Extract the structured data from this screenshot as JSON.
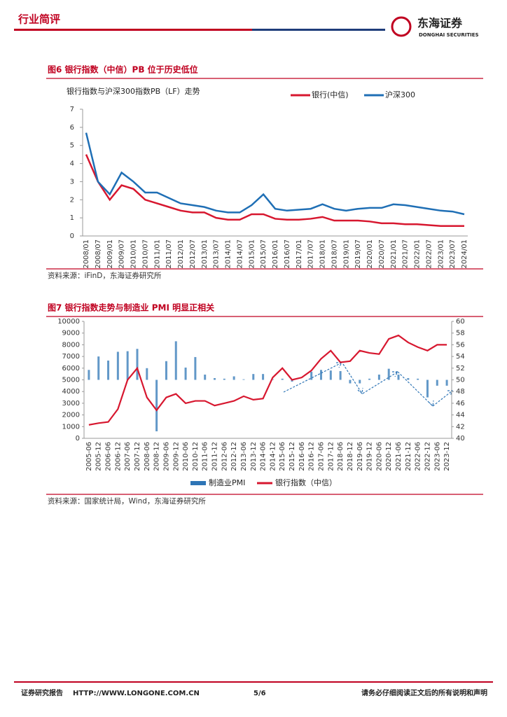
{
  "header": {
    "section": "行业简评",
    "logo": "东海证券",
    "logo_en": "DONGHAI SECURITIES"
  },
  "chart_data": [
    {
      "type": "line",
      "caption": "图6 银行指数（中信）PB 位于历史低位",
      "title": "银行指数与沪深300指数PB（LF）走势",
      "source": "资料来源：iFinD，东海证券研究所",
      "categories": [
        "2008/01",
        "2008/07",
        "2009/01",
        "2009/07",
        "2010/01",
        "2010/07",
        "2011/01",
        "2011/07",
        "2012/01",
        "2012/07",
        "2013/01",
        "2013/07",
        "2014/01",
        "2014/07",
        "2015/01",
        "2015/07",
        "2016/01",
        "2016/07",
        "2017/01",
        "2017/07",
        "2018/01",
        "2018/07",
        "2019/01",
        "2019/07",
        "2020/01",
        "2020/07",
        "2021/01",
        "2021/07",
        "2022/01",
        "2022/07",
        "2023/01",
        "2023/07",
        "2024/01"
      ],
      "series": [
        {
          "name": "银行(中信)",
          "color": "#d7172f",
          "values": [
            4.5,
            3.0,
            2.0,
            2.8,
            2.6,
            2.0,
            1.8,
            1.6,
            1.4,
            1.3,
            1.3,
            1.0,
            0.9,
            0.9,
            1.2,
            1.2,
            0.95,
            0.9,
            0.9,
            0.95,
            1.05,
            0.85,
            0.85,
            0.85,
            0.8,
            0.7,
            0.7,
            0.65,
            0.65,
            0.6,
            0.55,
            0.55,
            0.55
          ]
        },
        {
          "name": "沪深300",
          "color": "#1f6fb5",
          "values": [
            5.7,
            3.0,
            2.3,
            3.5,
            3.0,
            2.4,
            2.4,
            2.1,
            1.8,
            1.7,
            1.6,
            1.4,
            1.3,
            1.3,
            1.7,
            2.3,
            1.5,
            1.4,
            1.45,
            1.5,
            1.75,
            1.5,
            1.4,
            1.5,
            1.55,
            1.55,
            1.75,
            1.7,
            1.6,
            1.5,
            1.4,
            1.35,
            1.2
          ]
        }
      ],
      "ylim": [
        0,
        7
      ],
      "yticks": [
        0,
        1,
        2,
        3,
        4,
        5,
        6,
        7
      ]
    },
    {
      "type": "combo",
      "caption": "图7 银行指数走势与制造业 PMI 明显正相关",
      "source": "资料来源：国家统计局，Wind，东海证券研究所",
      "categories": [
        "2005-06",
        "2005-12",
        "2006-06",
        "2006-12",
        "2007-06",
        "2007-12",
        "2008-06",
        "2008-12",
        "2009-06",
        "2009-12",
        "2010-06",
        "2010-12",
        "2011-06",
        "2011-12",
        "2012-06",
        "2012-12",
        "2013-06",
        "2013-12",
        "2014-06",
        "2014-12",
        "2015-06",
        "2015-12",
        "2016-06",
        "2016-12",
        "2017-06",
        "2017-12",
        "2018-06",
        "2018-12",
        "2019-06",
        "2019-12",
        "2020-06",
        "2020-12",
        "2021-06",
        "2021-12",
        "2022-06",
        "2022-12",
        "2023-06",
        "2023-12"
      ],
      "series": [
        {
          "name": "制造业PMI",
          "color": "#2e75b6",
          "axis": "y2",
          "kind": "bar",
          "values": [
            51.7,
            54.0,
            53.3,
            54.8,
            54.9,
            55.3,
            52.0,
            41.2,
            53.2,
            56.6,
            52.1,
            53.9,
            50.9,
            50.3,
            50.2,
            50.6,
            50.1,
            51.0,
            51.0,
            50.1,
            50.2,
            49.7,
            50.0,
            51.4,
            51.7,
            51.6,
            51.5,
            49.4,
            49.4,
            50.2,
            50.9,
            51.9,
            50.9,
            50.3,
            50.2,
            47.0,
            49.0,
            49.0
          ]
        },
        {
          "name": "银行指数（中信）",
          "color": "#d7172f",
          "kind": "line",
          "values": [
            1150,
            1300,
            1400,
            2500,
            5000,
            6000,
            3500,
            2400,
            3500,
            3800,
            3000,
            3200,
            3200,
            2800,
            3000,
            3200,
            3600,
            3300,
            3400,
            5200,
            6000,
            5000,
            5200,
            5800,
            6800,
            7500,
            6500,
            6600,
            7500,
            7300,
            7200,
            8500,
            8800,
            8200,
            7800,
            7500,
            8000,
            8000
          ]
        }
      ],
      "ylim": [
        0,
        10000
      ],
      "yticks": [
        0,
        1000,
        2000,
        3000,
        4000,
        5000,
        6000,
        7000,
        8000,
        9000,
        10000
      ],
      "y2lim": [
        40,
        60
      ],
      "y2ticks": [
        40,
        42,
        44,
        46,
        48,
        50,
        52,
        54,
        56,
        58,
        60
      ]
    }
  ],
  "footer": {
    "left": "证券研究报告",
    "url": "HTTP://WWW.LONGONE.COM.CN",
    "page": "5/6",
    "right": "请务必仔细阅读正文后的所有说明和声明"
  }
}
